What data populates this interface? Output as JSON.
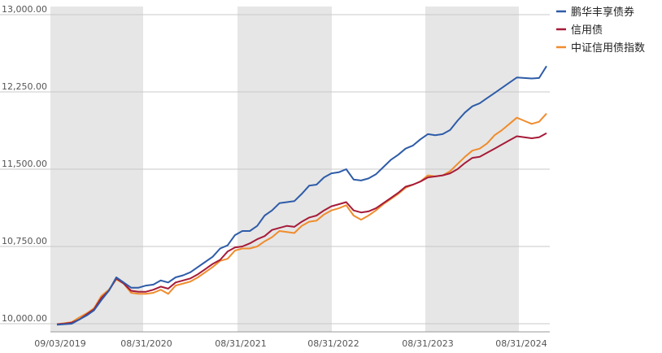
{
  "chart_data": {
    "type": "line",
    "title": "",
    "xlabel": "",
    "ylabel": "",
    "ylim": [
      10000,
      13000
    ],
    "yticks": [
      "13,000.00",
      "12,250.00",
      "11,500.00",
      "10,750.00",
      "10,000.00"
    ],
    "ytick_values": [
      13000,
      12250,
      11500,
      10750,
      10000
    ],
    "xticks": [
      "09/03/2019",
      "08/31/2020",
      "08/31/2021",
      "08/31/2022",
      "08/31/2023",
      "08/31/2024"
    ],
    "grid": true,
    "shaded_bands": "alternating years",
    "legend_position": "top-right",
    "series": [
      {
        "name": "鹏华丰享债券",
        "color": "#2e5ca8",
        "values": [
          9990,
          9995,
          10000,
          10040,
          10080,
          10130,
          10230,
          10320,
          10450,
          10400,
          10350,
          10350,
          10370,
          10380,
          10420,
          10400,
          10450,
          10470,
          10500,
          10550,
          10600,
          10650,
          10730,
          10760,
          10860,
          10900,
          10900,
          10950,
          11050,
          11100,
          11170,
          11180,
          11190,
          11260,
          11340,
          11350,
          11420,
          11460,
          11470,
          11500,
          11400,
          11390,
          11410,
          11450,
          11520,
          11590,
          11640,
          11700,
          11730,
          11790,
          11840,
          11830,
          11840,
          11880,
          11970,
          12050,
          12110,
          12140,
          12190,
          12240,
          12290,
          12340,
          12390,
          12385,
          12380,
          12385,
          12500
        ]
      },
      {
        "name": "信用债",
        "color": "#a61b38",
        "values": [
          9995,
          10000,
          10010,
          10040,
          10090,
          10140,
          10250,
          10320,
          10440,
          10390,
          10320,
          10310,
          10310,
          10330,
          10360,
          10340,
          10400,
          10420,
          10440,
          10480,
          10530,
          10580,
          10620,
          10700,
          10740,
          10750,
          10780,
          10820,
          10850,
          10910,
          10930,
          10950,
          10940,
          10990,
          11030,
          11050,
          11100,
          11140,
          11160,
          11180,
          11100,
          11080,
          11090,
          11120,
          11170,
          11220,
          11270,
          11330,
          11350,
          11380,
          11420,
          11430,
          11440,
          11460,
          11500,
          11560,
          11610,
          11620,
          11660,
          11700,
          11740,
          11780,
          11820,
          11810,
          11800,
          11810,
          11850
        ]
      },
      {
        "name": "中证信用债指数",
        "color": "#f08c2d",
        "values": [
          9995,
          10005,
          10015,
          10060,
          10100,
          10150,
          10270,
          10330,
          10430,
          10390,
          10300,
          10290,
          10290,
          10300,
          10330,
          10290,
          10370,
          10390,
          10410,
          10450,
          10500,
          10550,
          10610,
          10630,
          10710,
          10730,
          10730,
          10750,
          10800,
          10840,
          10900,
          10890,
          10880,
          10950,
          10990,
          11000,
          11060,
          11100,
          11120,
          11150,
          11050,
          11010,
          11050,
          11100,
          11160,
          11210,
          11260,
          11320,
          11350,
          11380,
          11440,
          11430,
          11440,
          11480,
          11550,
          11620,
          11680,
          11700,
          11750,
          11830,
          11880,
          11940,
          12000,
          11970,
          11940,
          11960,
          12040
        ]
      }
    ]
  }
}
